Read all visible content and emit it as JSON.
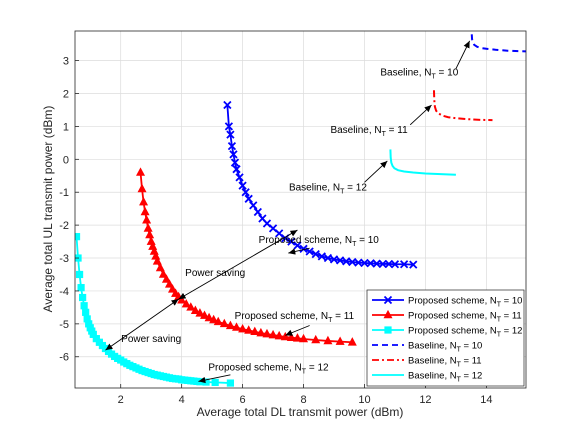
{
  "chart_data": {
    "type": "line",
    "title": "",
    "xlabel": "Average total DL transmit power (dBm)",
    "ylabel": "Average total UL transmit power (dBm)",
    "xlim": [
      0.5,
      15.3
    ],
    "ylim": [
      -6.95,
      3.9
    ],
    "xticks": [
      "2",
      "4",
      "6",
      "8",
      "10",
      "12",
      "14"
    ],
    "yticks": [
      "-6",
      "-5",
      "-4",
      "-3",
      "-2",
      "-1",
      "0",
      "1",
      "2",
      "3"
    ],
    "grid": true,
    "legend_position": "bottom-right",
    "series": [
      {
        "name": "Proposed scheme, N_T = 10",
        "color": "#0000ff",
        "style": "solid",
        "marker": "x",
        "x": [
          5.5,
          5.55,
          5.6,
          5.65,
          5.7,
          5.75,
          5.8,
          5.9,
          6.0,
          6.1,
          6.2,
          6.35,
          6.5,
          6.65,
          6.8,
          7.0,
          7.2,
          7.4,
          7.6,
          7.8,
          8.0,
          8.2,
          8.4,
          8.6,
          8.8,
          9.0,
          9.2,
          9.4,
          9.6,
          9.8,
          10.0,
          10.2,
          10.4,
          10.6,
          10.8,
          11.0,
          11.3,
          11.6
        ],
        "y": [
          1.65,
          1.0,
          0.75,
          0.4,
          0.15,
          -0.1,
          -0.3,
          -0.55,
          -0.8,
          -1.0,
          -1.2,
          -1.4,
          -1.6,
          -1.8,
          -1.95,
          -2.1,
          -2.25,
          -2.4,
          -2.5,
          -2.62,
          -2.72,
          -2.8,
          -2.88,
          -2.95,
          -3.0,
          -3.04,
          -3.07,
          -3.1,
          -3.12,
          -3.14,
          -3.15,
          -3.16,
          -3.17,
          -3.18,
          -3.18,
          -3.19,
          -3.19,
          -3.2
        ]
      },
      {
        "name": "Proposed scheme, N_T = 11",
        "color": "#ff0000",
        "style": "solid",
        "marker": "triangle",
        "x": [
          2.65,
          2.7,
          2.75,
          2.8,
          2.85,
          2.9,
          2.95,
          3.0,
          3.05,
          3.1,
          3.15,
          3.2,
          3.3,
          3.4,
          3.5,
          3.6,
          3.7,
          3.8,
          3.9,
          4.0,
          4.15,
          4.3,
          4.45,
          4.6,
          4.75,
          4.9,
          5.05,
          5.2,
          5.4,
          5.6,
          5.8,
          6.0,
          6.2,
          6.4,
          6.6,
          6.8,
          7.0,
          7.2,
          7.4,
          7.6,
          7.8,
          8.0,
          8.4,
          8.8,
          9.2,
          9.6
        ],
        "y": [
          -0.4,
          -0.9,
          -1.3,
          -1.6,
          -1.85,
          -2.1,
          -2.3,
          -2.5,
          -2.65,
          -2.8,
          -2.95,
          -3.1,
          -3.3,
          -3.5,
          -3.65,
          -3.8,
          -3.95,
          -4.08,
          -4.18,
          -4.28,
          -4.4,
          -4.5,
          -4.6,
          -4.68,
          -4.75,
          -4.82,
          -4.88,
          -4.94,
          -5.0,
          -5.06,
          -5.11,
          -5.16,
          -5.2,
          -5.24,
          -5.28,
          -5.31,
          -5.34,
          -5.37,
          -5.4,
          -5.42,
          -5.44,
          -5.46,
          -5.49,
          -5.52,
          -5.54,
          -5.56
        ]
      },
      {
        "name": "Proposed scheme, N_T = 12",
        "color": "#00ffff",
        "style": "solid",
        "marker": "square",
        "x": [
          0.55,
          0.6,
          0.65,
          0.7,
          0.75,
          0.8,
          0.85,
          0.9,
          0.95,
          1.0,
          1.05,
          1.1,
          1.2,
          1.3,
          1.4,
          1.5,
          1.6,
          1.7,
          1.8,
          1.9,
          2.0,
          2.1,
          2.2,
          2.3,
          2.4,
          2.5,
          2.6,
          2.7,
          2.8,
          2.9,
          3.0,
          3.1,
          3.2,
          3.3,
          3.4,
          3.5,
          3.6,
          3.7,
          3.8,
          3.9,
          4.0,
          4.1,
          4.2,
          4.3,
          4.4,
          4.5,
          4.6,
          4.8,
          5.1,
          5.6
        ],
        "y": [
          -2.35,
          -3.0,
          -3.5,
          -3.9,
          -4.2,
          -4.45,
          -4.65,
          -4.85,
          -5.0,
          -5.12,
          -5.22,
          -5.32,
          -5.45,
          -5.56,
          -5.66,
          -5.75,
          -5.84,
          -5.92,
          -5.99,
          -6.05,
          -6.1,
          -6.16,
          -6.21,
          -6.26,
          -6.3,
          -6.34,
          -6.38,
          -6.42,
          -6.45,
          -6.48,
          -6.51,
          -6.54,
          -6.56,
          -6.58,
          -6.6,
          -6.62,
          -6.64,
          -6.66,
          -6.67,
          -6.68,
          -6.7,
          -6.71,
          -6.72,
          -6.73,
          -6.74,
          -6.75,
          -6.76,
          -6.77,
          -6.78,
          -6.8
        ]
      },
      {
        "name": "Baseline, N_T = 10",
        "color": "#0000ff",
        "style": "dashed",
        "marker": "none",
        "x": [
          13.52,
          13.53,
          13.56,
          13.6,
          13.7,
          13.85,
          14.0,
          14.3,
          14.7,
          15.3
        ],
        "y": [
          3.8,
          3.65,
          3.55,
          3.48,
          3.42,
          3.38,
          3.36,
          3.33,
          3.3,
          3.28
        ]
      },
      {
        "name": "Baseline, N_T = 11",
        "color": "#ff0000",
        "style": "dashdot",
        "marker": "none",
        "x": [
          12.28,
          12.29,
          12.31,
          12.35,
          12.42,
          12.55,
          12.75,
          13.0,
          13.4,
          13.8,
          14.2
        ],
        "y": [
          2.1,
          1.8,
          1.6,
          1.48,
          1.4,
          1.33,
          1.28,
          1.25,
          1.22,
          1.2,
          1.19
        ]
      },
      {
        "name": "Baseline, N_T = 12",
        "color": "#00ffff",
        "style": "solid",
        "marker": "none",
        "x": [
          10.85,
          10.86,
          10.88,
          10.92,
          10.98,
          11.1,
          11.3,
          11.6,
          12.0,
          12.5,
          13.0
        ],
        "y": [
          0.3,
          0.05,
          -0.1,
          -0.2,
          -0.27,
          -0.33,
          -0.37,
          -0.4,
          -0.43,
          -0.45,
          -0.47
        ]
      }
    ],
    "annotations": [
      {
        "text": "Baseline, N",
        "sub": "T",
        "tail": " = 10",
        "tx": 11.8,
        "ty": 2.55,
        "ax": 13.45,
        "ay": 3.6,
        "bx": 13.0,
        "by": 2.75
      },
      {
        "text": "Baseline, N",
        "sub": "T",
        "tail": " = 11",
        "tx": 10.15,
        "ty": 0.8,
        "ax": 12.2,
        "ay": 1.65,
        "bx": 11.5,
        "by": 1.05
      },
      {
        "text": "Baseline, N",
        "sub": "T",
        "tail": " = 12",
        "tx": 8.8,
        "ty": -0.95,
        "ax": 10.75,
        "ay": -0.05,
        "bx": 10.0,
        "by": -0.7
      },
      {
        "text": "Proposed scheme, N",
        "sub": "T",
        "tail": " = 10",
        "tx": 8.5,
        "ty": -2.55,
        "ax": 7.5,
        "ay": -2.85,
        "bx": 8.2,
        "by": -2.7
      },
      {
        "text": "Proposed scheme, N",
        "sub": "T",
        "tail": " = 11",
        "tx": 7.7,
        "ty": -4.85,
        "ax": 7.4,
        "ay": -5.35,
        "bx": 8.2,
        "by": -5.05
      },
      {
        "text": "Proposed scheme, N",
        "sub": "T",
        "tail": " = 12",
        "tx": 6.85,
        "ty": -6.42,
        "ax": 4.55,
        "ay": -6.75,
        "bx": 5.6,
        "by": -6.55
      },
      {
        "text": "Power saving",
        "tx": 5.1,
        "ty": -3.55,
        "ax": 0,
        "ay": 0,
        "bx": 0,
        "by": 0
      },
      {
        "text": "Power saving",
        "tx": 3.0,
        "ty": -5.55,
        "ax": 0,
        "ay": 0,
        "bx": 0,
        "by": 0
      }
    ],
    "double_arrows": [
      {
        "x1": 3.9,
        "y1": -4.25,
        "x2": 7.8,
        "y2": -2.15
      },
      {
        "x1": 1.5,
        "y1": -5.8,
        "x2": 3.9,
        "y2": -4.25
      }
    ]
  }
}
